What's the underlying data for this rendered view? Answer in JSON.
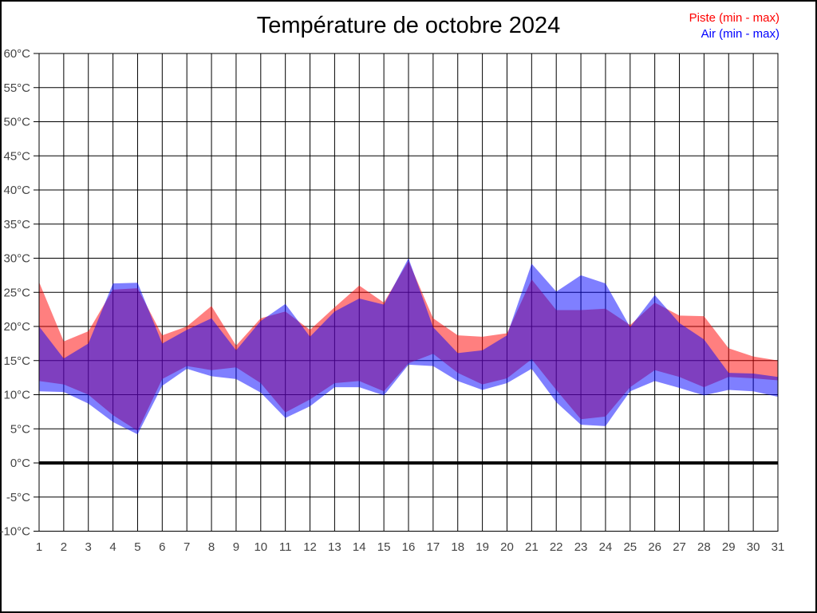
{
  "window": {
    "background": "#ffffff",
    "border_color": "#000000"
  },
  "chart_data": {
    "type": "area",
    "subtype": "min-max-range-bands",
    "title": "Température de octobre 2024",
    "xlabel": "",
    "ylabel": "",
    "x_tick_labels": [
      "1",
      "2",
      "3",
      "4",
      "5",
      "6",
      "7",
      "8",
      "9",
      "10",
      "11",
      "12",
      "13",
      "14",
      "15",
      "16",
      "17",
      "18",
      "19",
      "20",
      "21",
      "22",
      "23",
      "24",
      "25",
      "26",
      "27",
      "28",
      "29",
      "30",
      "31"
    ],
    "y_tick_labels": [
      "-10°C",
      "-5°C",
      "0°C",
      "5°C",
      "10°C",
      "15°C",
      "20°C",
      "25°C",
      "30°C",
      "35°C",
      "40°C",
      "45°C",
      "50°C",
      "55°C",
      "60°C"
    ],
    "ylim": [
      -10,
      60
    ],
    "y_tick_step": 5,
    "grid": true,
    "zero_line_bold": true,
    "legend_position": "top-right",
    "axis_text_color": "#444444",
    "series": [
      {
        "name": "Piste (min - max)",
        "color": "#ff0000",
        "fill_opacity": 0.5,
        "max": [
          26.5,
          17.8,
          19.3,
          25.4,
          25.6,
          18.7,
          20.0,
          23.0,
          17.2,
          21.2,
          22.2,
          19.5,
          22.8,
          26.0,
          23.5,
          29.6,
          21.2,
          18.7,
          18.5,
          19.0,
          26.9,
          22.4,
          22.4,
          22.6,
          20.2,
          23.5,
          21.6,
          21.5,
          16.8,
          15.6,
          15.0
        ],
        "min": [
          12.0,
          11.5,
          10.0,
          7.0,
          4.7,
          12.3,
          14.2,
          13.6,
          14.0,
          11.7,
          7.4,
          9.3,
          11.7,
          12.0,
          10.5,
          14.6,
          16.0,
          13.2,
          11.5,
          12.4,
          15.2,
          10.7,
          6.4,
          6.8,
          11.1,
          13.6,
          12.6,
          11.1,
          12.6,
          12.4,
          12.1
        ]
      },
      {
        "name": "Air (min - max)",
        "color": "#0000ff",
        "fill_opacity": 0.5,
        "max": [
          20.0,
          15.3,
          17.5,
          26.3,
          26.4,
          17.5,
          19.5,
          21.2,
          16.5,
          20.8,
          23.3,
          18.5,
          22.2,
          24.1,
          23.2,
          30.0,
          19.9,
          16.1,
          16.5,
          18.7,
          29.2,
          25.1,
          27.5,
          26.3,
          19.9,
          24.6,
          20.5,
          18.1,
          13.2,
          13.1,
          12.6
        ],
        "min": [
          10.5,
          10.4,
          8.7,
          6.0,
          4.2,
          11.3,
          13.8,
          12.7,
          12.3,
          10.3,
          6.6,
          8.3,
          11.1,
          11.1,
          9.9,
          14.4,
          14.2,
          12.0,
          10.7,
          11.7,
          13.8,
          8.9,
          5.6,
          5.4,
          10.5,
          12.0,
          11.0,
          9.9,
          10.7,
          10.5,
          9.7
        ]
      }
    ]
  }
}
